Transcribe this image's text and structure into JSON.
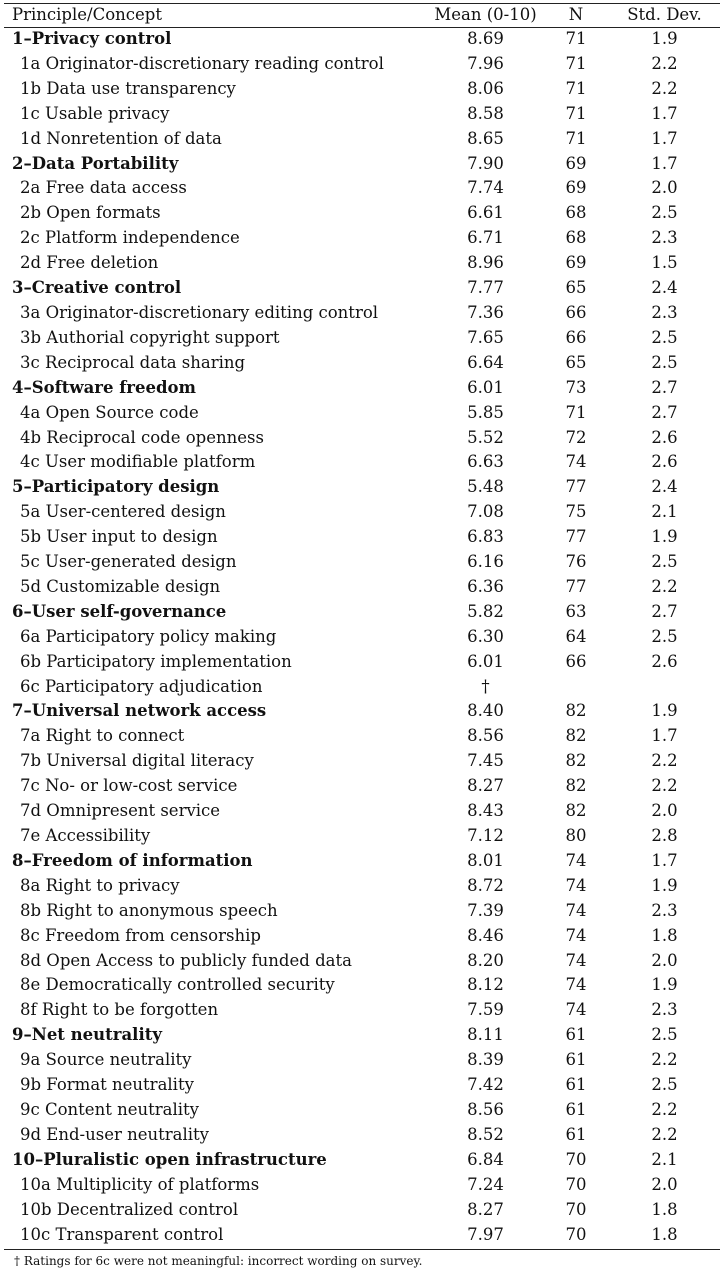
{
  "table": {
    "headers": {
      "name": "Principle/Concept",
      "mean": "Mean (0-10)",
      "n": "N",
      "sd": "Std. Dev."
    },
    "rows": [
      {
        "label": "1–Privacy control",
        "mean": "8.69",
        "n": "71",
        "sd": "1.9",
        "main": true
      },
      {
        "label": "1a Originator-discretionary reading control",
        "mean": "7.96",
        "n": "71",
        "sd": "2.2"
      },
      {
        "label": "1b Data use transparency",
        "mean": "8.06",
        "n": "71",
        "sd": "2.2"
      },
      {
        "label": "1c Usable privacy",
        "mean": "8.58",
        "n": "71",
        "sd": "1.7"
      },
      {
        "label": "1d Nonretention of data",
        "mean": "8.65",
        "n": "71",
        "sd": "1.7"
      },
      {
        "label": "2–Data Portability",
        "mean": "7.90",
        "n": "69",
        "sd": "1.7",
        "main": true
      },
      {
        "label": "2a Free data access",
        "mean": "7.74",
        "n": "69",
        "sd": "2.0"
      },
      {
        "label": "2b Open formats",
        "mean": "6.61",
        "n": "68",
        "sd": "2.5"
      },
      {
        "label": "2c Platform independence",
        "mean": "6.71",
        "n": "68",
        "sd": "2.3"
      },
      {
        "label": "2d Free deletion",
        "mean": "8.96",
        "n": "69",
        "sd": "1.5"
      },
      {
        "label": "3–Creative control",
        "mean": "7.77",
        "n": "65",
        "sd": "2.4",
        "main": true
      },
      {
        "label": "3a Originator-discretionary editing control",
        "mean": "7.36",
        "n": "66",
        "sd": "2.3"
      },
      {
        "label": "3b Authorial copyright support",
        "mean": "7.65",
        "n": "66",
        "sd": "2.5"
      },
      {
        "label": "3c Reciprocal data sharing",
        "mean": "6.64",
        "n": "65",
        "sd": "2.5"
      },
      {
        "label": "4–Software freedom",
        "mean": "6.01",
        "n": "73",
        "sd": "2.7",
        "main": true
      },
      {
        "label": "4a Open Source code",
        "mean": "5.85",
        "n": "71",
        "sd": "2.7"
      },
      {
        "label": "4b Reciprocal code openness",
        "mean": "5.52",
        "n": "72",
        "sd": "2.6"
      },
      {
        "label": "4c User modifiable platform",
        "mean": "6.63",
        "n": "74",
        "sd": "2.6"
      },
      {
        "label": "5–Participatory design",
        "mean": "5.48",
        "n": "77",
        "sd": "2.4",
        "main": true
      },
      {
        "label": "5a User-centered design",
        "mean": "7.08",
        "n": "75",
        "sd": "2.1"
      },
      {
        "label": "5b User input to design",
        "mean": "6.83",
        "n": "77",
        "sd": "1.9"
      },
      {
        "label": "5c User-generated design",
        "mean": "6.16",
        "n": "76",
        "sd": "2.5"
      },
      {
        "label": "5d Customizable design",
        "mean": "6.36",
        "n": "77",
        "sd": "2.2"
      },
      {
        "label": "6–User self-governance",
        "mean": "5.82",
        "n": "63",
        "sd": "2.7",
        "main": true
      },
      {
        "label": "6a Participatory policy making",
        "mean": "6.30",
        "n": "64",
        "sd": "2.5"
      },
      {
        "label": "6b Participatory implementation",
        "mean": "6.01",
        "n": "66",
        "sd": "2.6"
      },
      {
        "label": "6c Participatory adjudication",
        "mean": "†",
        "n": "",
        "sd": ""
      },
      {
        "label": "7–Universal network access",
        "mean": "8.40",
        "n": "82",
        "sd": "1.9",
        "main": true
      },
      {
        "label": "7a Right to connect",
        "mean": "8.56",
        "n": "82",
        "sd": "1.7"
      },
      {
        "label": "7b Universal digital literacy",
        "mean": "7.45",
        "n": "82",
        "sd": "2.2"
      },
      {
        "label": "7c No- or low-cost service",
        "mean": "8.27",
        "n": "82",
        "sd": "2.2"
      },
      {
        "label": "7d Omnipresent service",
        "mean": "8.43",
        "n": "82",
        "sd": "2.0"
      },
      {
        "label": "7e Accessibility",
        "mean": "7.12",
        "n": "80",
        "sd": "2.8"
      },
      {
        "label": "8–Freedom of information",
        "mean": "8.01",
        "n": "74",
        "sd": "1.7",
        "main": true
      },
      {
        "label": "8a Right to privacy",
        "mean": "8.72",
        "n": "74",
        "sd": "1.9"
      },
      {
        "label": "8b Right to anonymous speech",
        "mean": "7.39",
        "n": "74",
        "sd": "2.3"
      },
      {
        "label": "8c Freedom from censorship",
        "mean": "8.46",
        "n": "74",
        "sd": "1.8"
      },
      {
        "label": "8d Open Access to publicly funded data",
        "mean": "8.20",
        "n": "74",
        "sd": "2.0"
      },
      {
        "label": "8e Democratically controlled security",
        "mean": "8.12",
        "n": "74",
        "sd": "1.9"
      },
      {
        "label": "8f Right to be forgotten",
        "mean": "7.59",
        "n": "74",
        "sd": "2.3"
      },
      {
        "label": "9–Net neutrality",
        "mean": "8.11",
        "n": "61",
        "sd": "2.5",
        "main": true
      },
      {
        "label": "9a Source neutrality",
        "mean": "8.39",
        "n": "61",
        "sd": "2.2"
      },
      {
        "label": "9b Format neutrality",
        "mean": "7.42",
        "n": "61",
        "sd": "2.5"
      },
      {
        "label": "9c Content neutrality",
        "mean": "8.56",
        "n": "61",
        "sd": "2.2"
      },
      {
        "label": "9d End-user neutrality",
        "mean": "8.52",
        "n": "61",
        "sd": "2.2"
      },
      {
        "label": "10–Pluralistic open infrastructure",
        "mean": "6.84",
        "n": "70",
        "sd": "2.1",
        "main": true
      },
      {
        "label": "10a Multiplicity of platforms",
        "mean": "7.24",
        "n": "70",
        "sd": "2.0"
      },
      {
        "label": "10b Decentralized control",
        "mean": "8.27",
        "n": "70",
        "sd": "1.8"
      },
      {
        "label": "10c Transparent control",
        "mean": "7.97",
        "n": "70",
        "sd": "1.8"
      }
    ]
  },
  "footnote": "† Ratings for 6c were not meaningful: incorrect wording on survey."
}
